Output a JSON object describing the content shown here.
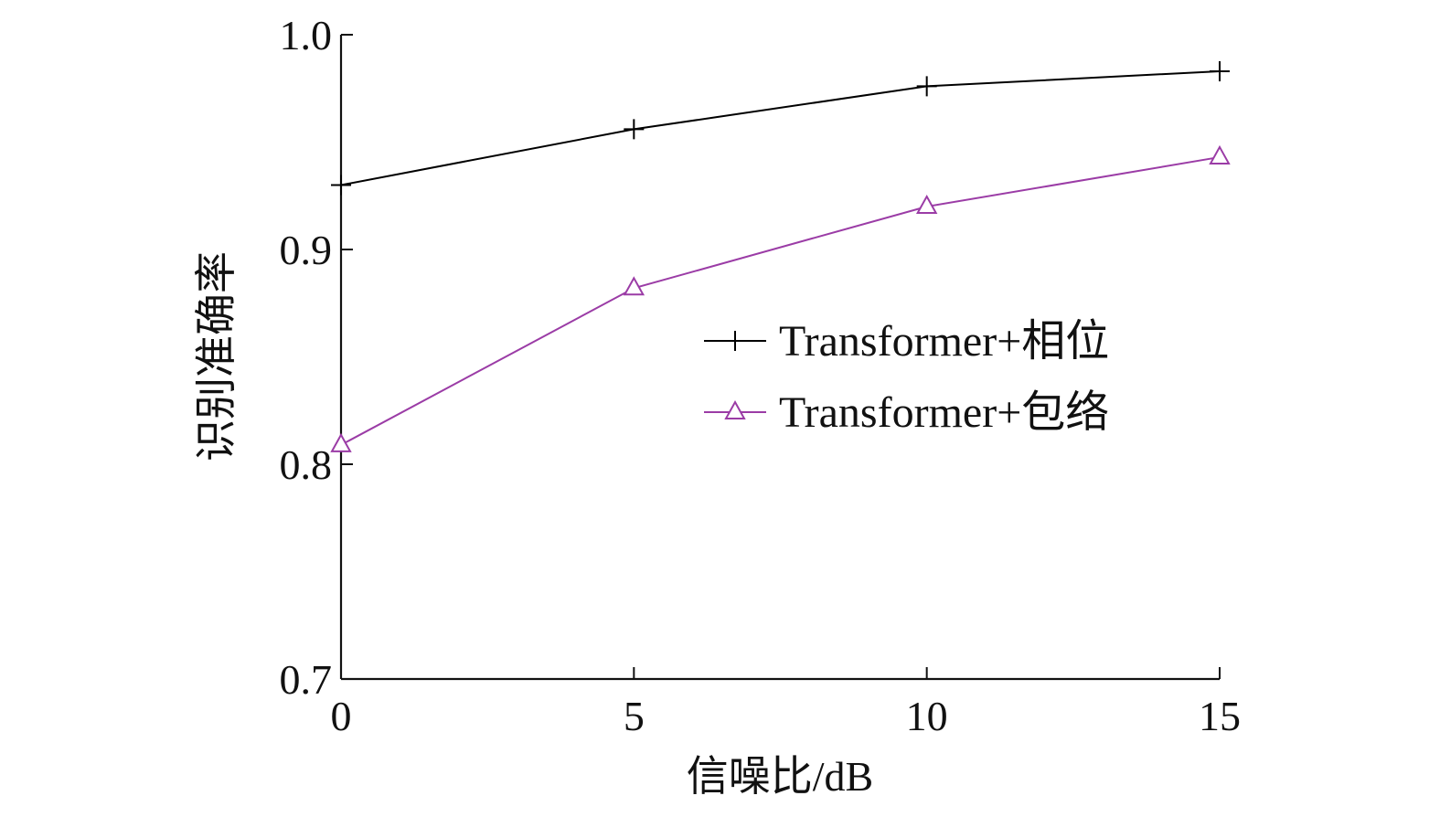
{
  "chart_data": {
    "type": "line",
    "xlabel": "信噪比/dB",
    "ylabel": "识别准确率",
    "x": [
      0,
      5,
      10,
      15
    ],
    "xlim": [
      0,
      15
    ],
    "ylim": [
      0.7,
      1.0
    ],
    "xticks": [
      0,
      5,
      10,
      15
    ],
    "yticks": [
      0.7,
      0.8,
      0.9,
      1.0
    ],
    "xtick_labels": [
      "0",
      "5",
      "10",
      "15"
    ],
    "ytick_labels": [
      "0.7",
      "0.8",
      "0.9",
      "1.0"
    ],
    "grid": false,
    "legend_position": "center-right",
    "series": [
      {
        "name": "Transformer+相位",
        "values": [
          0.93,
          0.956,
          0.976,
          0.983
        ],
        "color": "#000000",
        "marker": "plus"
      },
      {
        "name": "Transformer+包络",
        "values": [
          0.809,
          0.882,
          0.92,
          0.943
        ],
        "color": "#9b3ca6",
        "marker": "triangle"
      }
    ]
  }
}
